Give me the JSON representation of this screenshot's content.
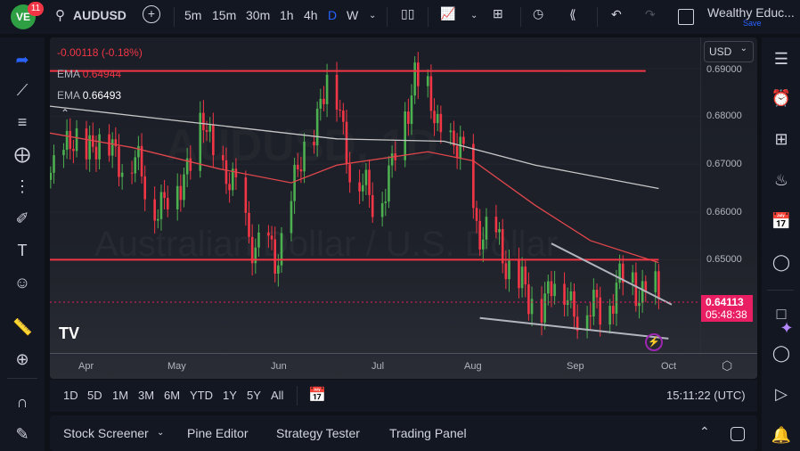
{
  "header": {
    "notif_count": "11",
    "symbol": "AUDUSD",
    "intervals": [
      "5m",
      "15m",
      "30m",
      "1h",
      "4h",
      "D",
      "W"
    ],
    "active_interval": "D",
    "layout_name": "Wealthy Educ...",
    "save_label": "Save"
  },
  "legend": {
    "change": "-0.00118 (-0.18%)",
    "ema1_label": "EMA",
    "ema1_value": "0.64944",
    "ema2_label": "EMA",
    "ema2_value": "0.66493"
  },
  "watermark": {
    "line1": "AUDUSD, 1D",
    "line2": "Australian Dollar / U.S. Dollar"
  },
  "price_axis": {
    "currency": "USD",
    "current_price": "0.64113",
    "countdown": "05:48:38",
    "ticks": [
      "0.69000",
      "0.68000",
      "0.67000",
      "0.66000",
      "0.65000"
    ]
  },
  "time_axis": {
    "labels": [
      "Apr",
      "May",
      "Jun",
      "Jul",
      "Aug",
      "Sep",
      "Oct"
    ]
  },
  "range_bar": {
    "ranges": [
      "1D",
      "5D",
      "1M",
      "3M",
      "6M",
      "YTD",
      "1Y",
      "5Y",
      "All"
    ],
    "clock": "15:11:22 (UTC)"
  },
  "bottom_panel": {
    "tabs": [
      "Stock Screener",
      "Pine Editor",
      "Strategy Tester",
      "Trading Panel"
    ]
  },
  "colors": {
    "up": "#4caf50",
    "down": "#f23645",
    "ema_fast": "#e0474c",
    "ema_slow": "#c8c8c8",
    "accent": "#2962ff",
    "price_tag": "#e91e63"
  },
  "chart_data": {
    "type": "candlestick",
    "xlim": [
      "2024-03-20",
      "2024-10-05"
    ],
    "ylim": [
      0.629,
      0.6955
    ],
    "price_path": [
      [
        "2024-03-20",
        0.67
      ],
      [
        "2024-04-02",
        0.675
      ],
      [
        "2024-04-13",
        0.672
      ],
      [
        "2024-04-25",
        0.66
      ],
      [
        "2024-05-07",
        0.678
      ],
      [
        "2024-05-24",
        0.652
      ],
      [
        "2024-05-29",
        0.65
      ],
      [
        "2024-06-07",
        0.672
      ],
      [
        "2024-06-15",
        0.69
      ],
      [
        "2024-06-22",
        0.668
      ],
      [
        "2024-06-27",
        0.662
      ],
      [
        "2024-07-04",
        0.668
      ],
      [
        "2024-07-11",
        0.69
      ],
      [
        "2024-07-18",
        0.678
      ],
      [
        "2024-07-25",
        0.672
      ],
      [
        "2024-07-29",
        0.66
      ],
      [
        "2024-08-02",
        0.655
      ],
      [
        "2024-08-09",
        0.65
      ],
      [
        "2024-08-15",
        0.64
      ],
      [
        "2024-08-23",
        0.645
      ],
      [
        "2024-09-03",
        0.638
      ],
      [
        "2024-09-08",
        0.642
      ],
      [
        "2024-09-16",
        0.646
      ],
      [
        "2024-09-24",
        0.6411
      ]
    ],
    "ema_fast": [
      [
        "2024-03-20",
        0.6766
      ],
      [
        "2024-04-15",
        0.6735
      ],
      [
        "2024-05-12",
        0.669
      ],
      [
        "2024-06-03",
        0.6661
      ],
      [
        "2024-06-17",
        0.6698
      ],
      [
        "2024-07-15",
        0.6726
      ],
      [
        "2024-07-29",
        0.6707
      ],
      [
        "2024-08-17",
        0.6614
      ],
      [
        "2024-09-03",
        0.654
      ],
      [
        "2024-09-24",
        0.6494
      ]
    ],
    "ema_slow": [
      [
        "2024-03-20",
        0.6822
      ],
      [
        "2024-06-17",
        0.6753
      ],
      [
        "2024-07-20",
        0.6748
      ],
      [
        "2024-08-17",
        0.6698
      ],
      [
        "2024-09-24",
        0.6649
      ]
    ],
    "drawings": [
      {
        "kind": "horizontal",
        "color": "#f23645",
        "from": "2024-03-20",
        "to": "2024-09-20",
        "price": 0.6895
      },
      {
        "kind": "horizontal",
        "color": "#f23645",
        "from": "2024-03-20",
        "to": "2024-09-24",
        "price": 0.65
      },
      {
        "kind": "trend",
        "color": "#b2b5be",
        "points": [
          [
            "2024-08-22",
            0.6534
          ],
          [
            "2024-09-28",
            0.6406
          ]
        ]
      },
      {
        "kind": "trend",
        "color": "#b2b5be",
        "points": [
          [
            "2024-07-31",
            0.6378
          ],
          [
            "2024-09-27",
            0.6335
          ]
        ]
      }
    ]
  }
}
